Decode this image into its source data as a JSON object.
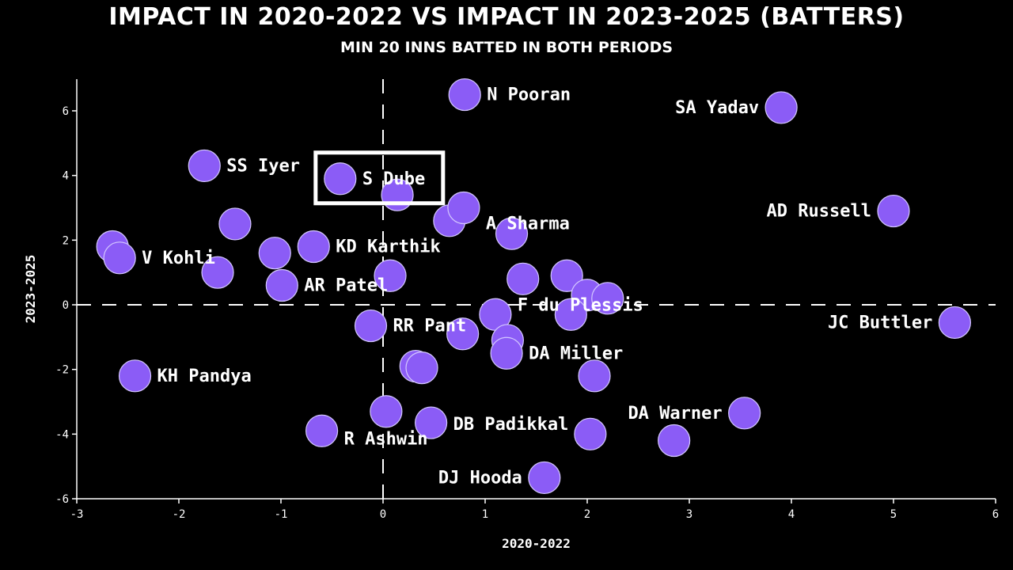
{
  "title": "IMPACT IN 2020-2022 VS  IMPACT IN 2023-2025 (BATTERS)",
  "subtitle": "MIN 20 INNS BATTED IN BOTH PERIODS",
  "colors": {
    "background": "#000000",
    "point_fill": "#8b5cf6",
    "point_stroke": "#d4c7ff",
    "text": "#ffffff",
    "highlight_box": "#ffffff"
  },
  "chart_data": {
    "type": "scatter",
    "xlabel": "2020-2022",
    "ylabel": "2023-2025",
    "xlim": [
      -3,
      6
    ],
    "ylim": [
      -6,
      7
    ],
    "xticks": [
      -3,
      -2,
      -1,
      0,
      1,
      2,
      3,
      4,
      5,
      6
    ],
    "yticks": [
      -6,
      -4,
      -2,
      0,
      2,
      4,
      6
    ],
    "grid": false,
    "reference_lines": [
      "x=0 dashed",
      "y=0 dashed"
    ],
    "highlighted": "S Dube",
    "points": [
      {
        "label": "N Pooran",
        "x": 0.8,
        "y": 6.5
      },
      {
        "label": "SA Yadav",
        "x": 3.9,
        "y": 6.1
      },
      {
        "label": "SS Iyer",
        "x": -1.75,
        "y": 4.3
      },
      {
        "label": "S Dube",
        "x": -0.42,
        "y": 3.9
      },
      {
        "label": "",
        "x": 0.14,
        "y": 3.4
      },
      {
        "label": "",
        "x": 0.65,
        "y": 2.6
      },
      {
        "label": "A Sharma",
        "x": 0.79,
        "y": 3.0
      },
      {
        "label": "AD Russell",
        "x": 5.0,
        "y": 2.9
      },
      {
        "label": "",
        "x": -1.45,
        "y": 2.5
      },
      {
        "label": "",
        "x": 1.26,
        "y": 2.2
      },
      {
        "label": "KD Karthik",
        "x": -0.68,
        "y": 1.8
      },
      {
        "label": "",
        "x": -2.65,
        "y": 1.8
      },
      {
        "label": "",
        "x": -1.06,
        "y": 1.6
      },
      {
        "label": "V Kohli",
        "x": -2.58,
        "y": 1.45
      },
      {
        "label": "",
        "x": -1.62,
        "y": 1.0
      },
      {
        "label": "",
        "x": 0.07,
        "y": 0.9
      },
      {
        "label": "AR Patel",
        "x": -0.99,
        "y": 0.6
      },
      {
        "label": "",
        "x": 1.37,
        "y": 0.8
      },
      {
        "label": "",
        "x": 1.8,
        "y": 0.9
      },
      {
        "label": "",
        "x": 2.0,
        "y": 0.3
      },
      {
        "label": "",
        "x": 2.2,
        "y": 0.2
      },
      {
        "label": "F du Plessis",
        "x": 1.1,
        "y": -0.3
      },
      {
        "label": "",
        "x": 1.84,
        "y": -0.3
      },
      {
        "label": "JC Buttler",
        "x": 5.6,
        "y": -0.55
      },
      {
        "label": "RR Pant",
        "x": -0.12,
        "y": -0.65
      },
      {
        "label": "",
        "x": 0.78,
        "y": -0.9
      },
      {
        "label": "",
        "x": 1.22,
        "y": -1.1
      },
      {
        "label": "DA Miller",
        "x": 1.21,
        "y": -1.5
      },
      {
        "label": "",
        "x": 0.32,
        "y": -1.9
      },
      {
        "label": "",
        "x": 0.38,
        "y": -1.95
      },
      {
        "label": "KH Pandya",
        "x": -2.43,
        "y": -2.2
      },
      {
        "label": "",
        "x": 2.07,
        "y": -2.2
      },
      {
        "label": "",
        "x": 0.03,
        "y": -3.3
      },
      {
        "label": "DB Padikkal",
        "x": 0.47,
        "y": -3.65
      },
      {
        "label": "R Ashwin",
        "x": -0.6,
        "y": -3.9
      },
      {
        "label": "DA Warner",
        "x": 3.54,
        "y": -3.35
      },
      {
        "label": "",
        "x": 2.03,
        "y": -4.0
      },
      {
        "label": "",
        "x": 2.85,
        "y": -4.2
      },
      {
        "label": "DJ Hooda",
        "x": 1.58,
        "y": -5.35
      }
    ]
  }
}
